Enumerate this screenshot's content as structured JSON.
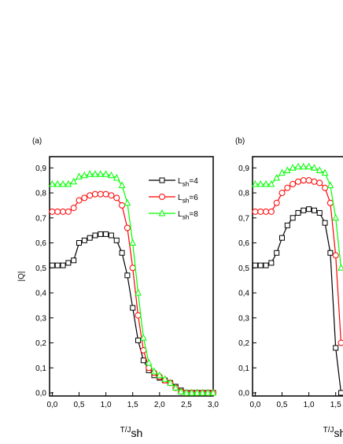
{
  "chart_data": [
    {
      "type": "line",
      "panel_label": "(a)",
      "y_label": "|Q|",
      "x_label": "T/Jsh",
      "legend": "upper right",
      "xlim": [
        -0.05,
        3.0
      ],
      "ylim": [
        -0.0125,
        0.945
      ],
      "xticks": [
        {
          "value": 0,
          "label": "0,0"
        },
        {
          "value": 0.5,
          "label": "0,5"
        },
        {
          "value": 1,
          "label": "1,0"
        },
        {
          "value": 1.5,
          "label": "1,5"
        },
        {
          "value": 2,
          "label": "2,0"
        },
        {
          "value": 2.5,
          "label": "2,5"
        },
        {
          "value": 3,
          "label": "3,0"
        }
      ],
      "yticks": [
        {
          "value": 0,
          "label": "0,0"
        },
        {
          "value": 0.1,
          "label": "0,1"
        },
        {
          "value": 0.2,
          "label": "0,2"
        },
        {
          "value": 0.3,
          "label": "0,3"
        },
        {
          "value": 0.4,
          "label": "0,4"
        },
        {
          "value": 0.5,
          "label": "0,5"
        },
        {
          "value": 0.6,
          "label": "0,6"
        },
        {
          "value": 0.7,
          "label": "0,7"
        },
        {
          "value": 0.8,
          "label": "0,8"
        },
        {
          "value": 0.9,
          "label": "0,9"
        }
      ],
      "x": [
        0,
        0.1,
        0.2,
        0.3,
        0.4,
        0.5,
        0.6,
        0.7,
        0.8,
        0.9,
        1.0,
        1.1,
        1.2,
        1.3,
        1.4,
        1.5,
        1.6,
        1.7,
        1.8,
        1.9,
        2.0,
        2.1,
        2.2,
        2.3,
        2.4,
        2.5,
        2.6,
        2.7,
        2.8,
        2.9,
        3.0
      ],
      "series": [
        {
          "name": "Lsh=4",
          "color": "#000000",
          "marker": "square",
          "values": [
            0.51,
            0.51,
            0.51,
            0.52,
            0.53,
            0.6,
            0.61,
            0.62,
            0.63,
            0.635,
            0.635,
            0.63,
            0.61,
            0.56,
            0.47,
            0.34,
            0.21,
            0.13,
            0.09,
            0.07,
            0.06,
            0.05,
            0.04,
            0.025,
            0.01,
            0,
            0,
            0,
            0,
            0,
            0
          ]
        },
        {
          "name": "Lsh=6",
          "color": "#ff0000",
          "marker": "circle",
          "values": [
            0.725,
            0.725,
            0.725,
            0.725,
            0.74,
            0.77,
            0.78,
            0.79,
            0.795,
            0.795,
            0.795,
            0.79,
            0.78,
            0.75,
            0.66,
            0.5,
            0.31,
            0.17,
            0.1,
            0.08,
            0.065,
            0.05,
            0.04,
            0.02,
            0.005,
            0,
            0,
            0,
            0,
            0,
            0
          ]
        },
        {
          "name": "Lsh=8",
          "color": "#00ff00",
          "marker": "triangle",
          "values": [
            0.835,
            0.835,
            0.835,
            0.835,
            0.845,
            0.865,
            0.87,
            0.875,
            0.875,
            0.875,
            0.875,
            0.87,
            0.86,
            0.83,
            0.76,
            0.6,
            0.4,
            0.22,
            0.12,
            0.085,
            0.07,
            0.055,
            0.04,
            0.02,
            0.005,
            0,
            0,
            0,
            0,
            0,
            0
          ]
        }
      ]
    },
    {
      "type": "line",
      "panel_label": "(b)",
      "x_label": "T/Jsh",
      "xlim": [
        -0.05,
        3.0
      ],
      "ylim": [
        -0.0125,
        0.945
      ],
      "xticks": [
        {
          "value": 0,
          "label": "0,0"
        },
        {
          "value": 0.5,
          "label": "0,5"
        },
        {
          "value": 1,
          "label": "1,0"
        },
        {
          "value": 1.5,
          "label": "1,5"
        }
      ],
      "yticks": [
        {
          "value": 0,
          "label": "0,0"
        },
        {
          "value": 0.1,
          "label": "0,1"
        },
        {
          "value": 0.2,
          "label": "0,2"
        },
        {
          "value": 0.3,
          "label": "0,3"
        },
        {
          "value": 0.4,
          "label": "0,4"
        },
        {
          "value": 0.5,
          "label": "0,5"
        },
        {
          "value": 0.6,
          "label": "0,6"
        },
        {
          "value": 0.7,
          "label": "0,7"
        },
        {
          "value": 0.8,
          "label": "0,8"
        },
        {
          "value": 0.9,
          "label": "0,9"
        }
      ],
      "x": [
        0,
        0.1,
        0.2,
        0.3,
        0.4,
        0.5,
        0.6,
        0.7,
        0.8,
        0.9,
        1.0,
        1.1,
        1.2,
        1.3,
        1.4,
        1.5,
        1.6
      ],
      "series": [
        {
          "color": "#000000",
          "marker": "square",
          "values": [
            0.51,
            0.51,
            0.51,
            0.52,
            0.56,
            0.62,
            0.67,
            0.7,
            0.72,
            0.73,
            0.735,
            0.73,
            0.72,
            0.68,
            0.56,
            0.18,
            0
          ]
        },
        {
          "color": "#ff0000",
          "marker": "circle",
          "values": [
            0.725,
            0.725,
            0.725,
            0.725,
            0.76,
            0.8,
            0.82,
            0.835,
            0.845,
            0.85,
            0.85,
            0.845,
            0.84,
            0.82,
            0.76,
            0.55,
            0.2
          ]
        },
        {
          "color": "#00ff00",
          "marker": "triangle",
          "values": [
            0.835,
            0.835,
            0.835,
            0.835,
            0.86,
            0.88,
            0.89,
            0.9,
            0.905,
            0.905,
            0.905,
            0.9,
            0.89,
            0.88,
            0.83,
            0.7,
            0.5
          ]
        }
      ]
    }
  ]
}
